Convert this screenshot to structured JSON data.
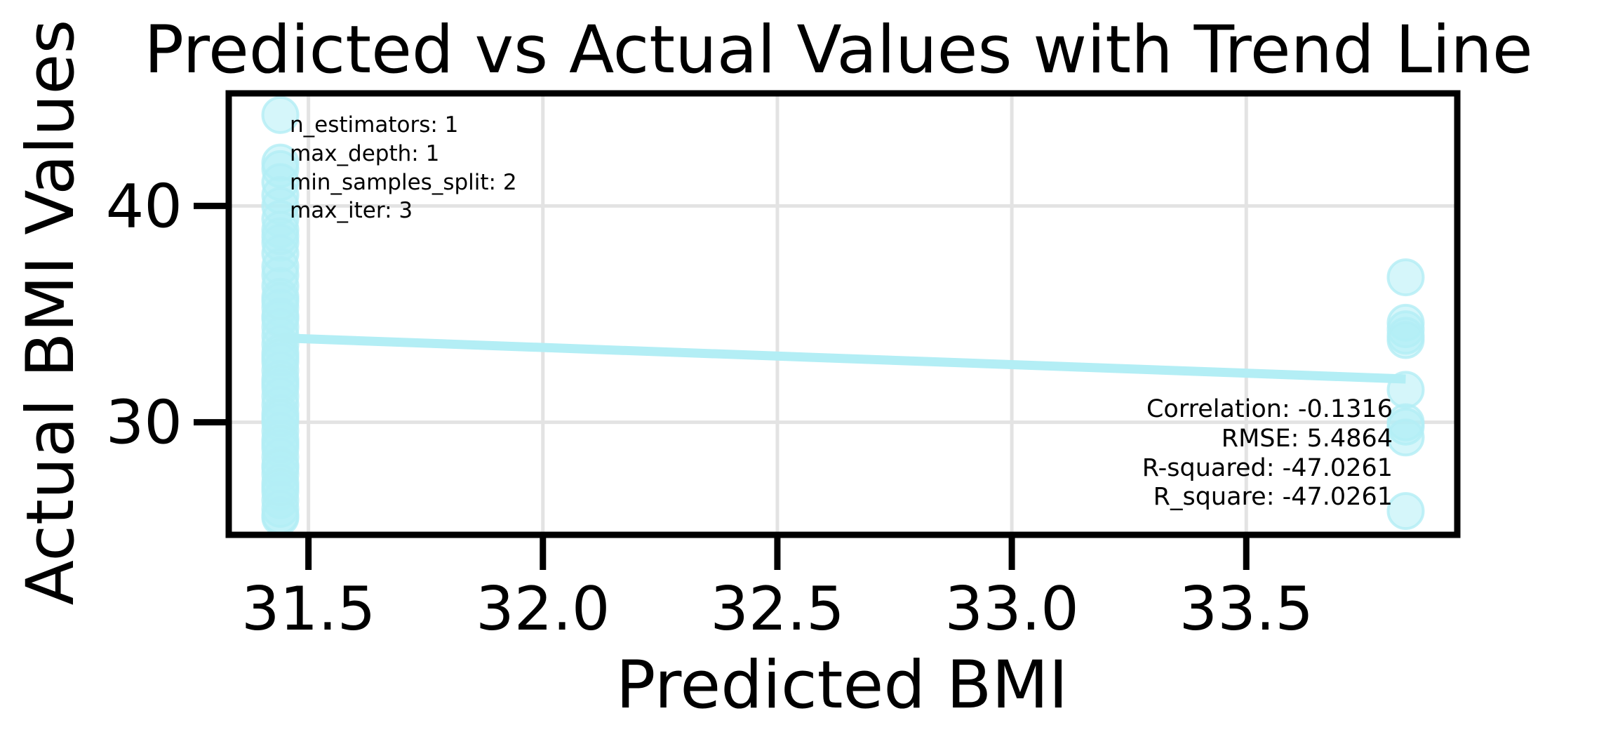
{
  "chart_data": {
    "type": "scatter",
    "title": "Predicted vs Actual Values with Trend Line",
    "xlabel": "Predicted BMI",
    "ylabel": "Actual BMI Values",
    "xlim": [
      31.33,
      33.95
    ],
    "ylim": [
      24.8,
      45.2
    ],
    "x_ticks": [
      "31.5",
      "32.0",
      "32.5",
      "33.0",
      "33.5"
    ],
    "x_tick_values": [
      31.5,
      32.0,
      32.5,
      33.0,
      33.5
    ],
    "y_ticks": [
      "30",
      "40"
    ],
    "y_tick_values": [
      30,
      40
    ],
    "grid": true,
    "point_color": "#b3eef5",
    "trend_color": "#b3eef5",
    "series": [
      {
        "x": [
          31.44,
          31.44,
          31.44,
          31.44,
          31.44,
          31.44,
          31.44,
          31.44,
          31.44,
          31.44,
          31.44,
          31.44,
          31.44,
          31.44,
          31.44,
          31.44,
          31.44,
          31.44,
          31.44,
          31.44,
          31.44,
          31.44,
          31.44,
          31.44,
          31.44,
          31.44,
          31.44,
          31.44,
          31.44,
          31.44,
          31.44,
          31.44,
          31.44,
          31.44,
          31.44,
          31.44,
          31.44,
          31.44,
          31.44,
          31.44,
          31.44,
          31.44,
          31.44,
          31.44,
          31.44,
          31.44,
          31.44,
          31.44,
          31.44,
          33.84,
          33.84,
          33.84,
          33.84,
          33.84,
          33.84,
          33.84,
          33.84,
          33.84,
          33.84
        ],
        "y": [
          44.2,
          42.0,
          41.7,
          41.1,
          40.5,
          40.0,
          39.4,
          38.9,
          38.3,
          37.8,
          37.2,
          36.8,
          36.3,
          35.8,
          35.3,
          34.9,
          34.4,
          34.0,
          33.6,
          33.2,
          32.8,
          32.4,
          32.0,
          31.6,
          31.2,
          30.8,
          30.4,
          30.0,
          29.6,
          29.2,
          28.8,
          28.4,
          28.0,
          27.6,
          27.2,
          26.8,
          26.4,
          26.0,
          25.7,
          25.6,
          34.8,
          33.0,
          31.8,
          30.2,
          29.0,
          27.9,
          27.0,
          35.6,
          38.6,
          36.7,
          34.6,
          34.3,
          34.0,
          33.8,
          31.5,
          30.0,
          29.8,
          29.3,
          25.9
        ]
      }
    ],
    "trend_line": {
      "x": [
        31.44,
        33.84
      ],
      "y": [
        33.9,
        32.0
      ]
    },
    "annotations": {
      "params": [
        "n_estimators: 1",
        "max_depth: 1",
        "min_samples_split: 2",
        "max_iter: 3"
      ],
      "metrics": [
        "Correlation: -0.1316",
        "RMSE: 5.4864",
        "R-squared: -47.0261",
        "R_square: -47.0261"
      ]
    }
  }
}
